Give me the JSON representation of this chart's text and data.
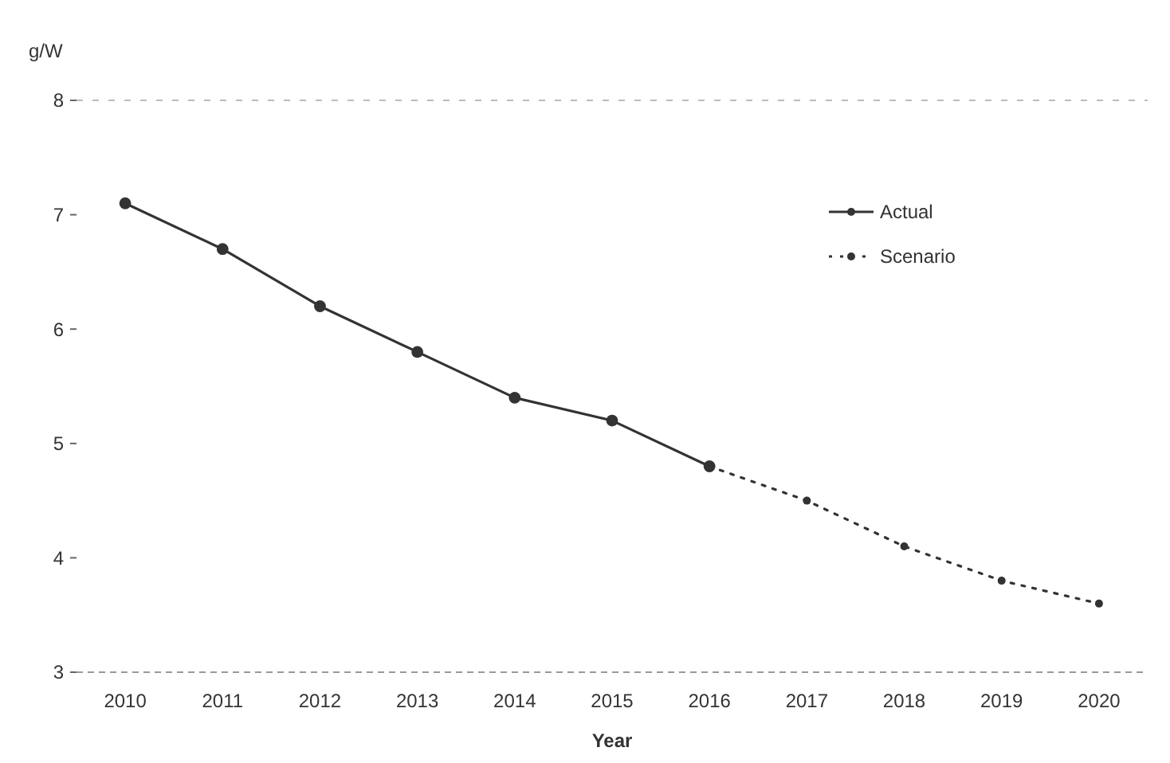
{
  "chart_data": {
    "type": "line",
    "ylabel": "g/W",
    "xlabel": "Year",
    "xlim": [
      2009.5,
      2020.5
    ],
    "xticks": [
      2010,
      2011,
      2012,
      2013,
      2014,
      2015,
      2016,
      2017,
      2018,
      2019,
      2020
    ],
    "ylim": [
      3,
      8
    ],
    "yticks": [
      3,
      4,
      5,
      6,
      7,
      8
    ],
    "grid": false,
    "legend": "top right",
    "marker": "circle",
    "series": [
      {
        "name": "Actual",
        "color": "#333333",
        "line_style": "solid",
        "x": [
          2010,
          2011,
          2012,
          2013,
          2014,
          2015,
          2016
        ],
        "values": [
          7.1,
          6.7,
          6.2,
          5.8,
          5.4,
          5.2,
          4.8
        ]
      },
      {
        "name": "Scenario",
        "color": "#333333",
        "line_style": "dotted",
        "x": [
          2016,
          2017,
          2018,
          2019,
          2020
        ],
        "values": [
          4.8,
          4.5,
          4.1,
          3.8,
          3.6
        ]
      }
    ]
  }
}
